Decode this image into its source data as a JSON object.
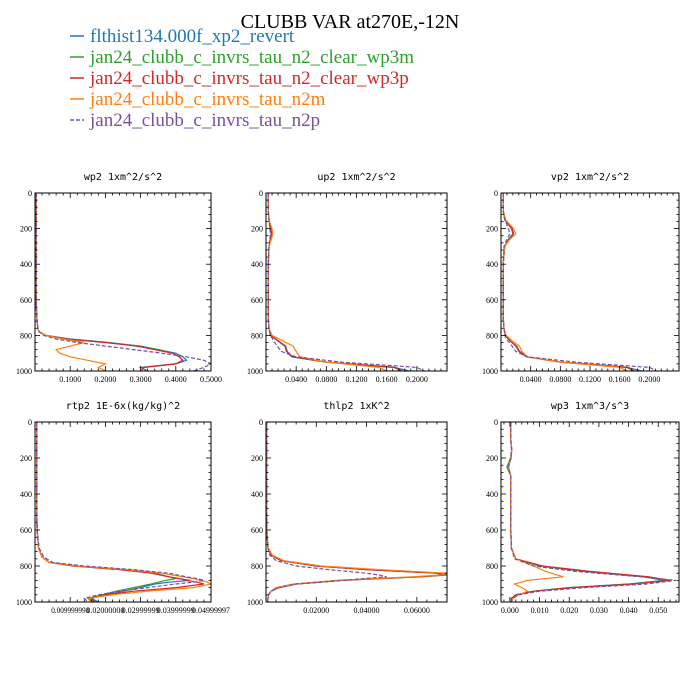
{
  "title": "CLUBB VAR at270E,-12N",
  "legend": [
    {
      "name": "flthist134.000f_xp2_revert",
      "color": "#1f77b4",
      "dash": false
    },
    {
      "name": "jan24_clubb_c_invrs_tau_n2_clear_wp3m",
      "color": "#2ca02c",
      "dash": false
    },
    {
      "name": "jan24_clubb_c_invrs_tau_n2_clear_wp3p",
      "color": "#d62728",
      "dash": false
    },
    {
      "name": "jan24_clubb_c_invrs_tau_n2m",
      "color": "#ff7f0e",
      "dash": false
    },
    {
      "name": "jan24_clubb_c_invrs_tau_n2p",
      "color": "#7b4fa0",
      "dash": true
    }
  ],
  "chart_data": [
    {
      "type": "line",
      "title": "wp2  1xm^2/s^2",
      "xlim": [
        0,
        0.5
      ],
      "ylim": [
        1000,
        0
      ],
      "xticks": [
        "0.1000",
        "0.2000",
        "0.3000",
        "0.4000",
        "0.5000"
      ],
      "xtick_values": [
        0.1,
        0.2,
        0.3,
        0.4,
        0.5
      ],
      "yticks": [
        "0",
        "200",
        "400",
        "600",
        "800",
        "1000"
      ],
      "y": [
        0,
        100,
        200,
        300,
        400,
        500,
        600,
        700,
        760,
        780,
        800,
        820,
        840,
        860,
        880,
        900,
        920,
        940,
        960,
        980,
        1000
      ],
      "series": [
        {
          "values": [
            0.004,
            0.004,
            0.003,
            0.003,
            0.003,
            0.003,
            0.003,
            0.005,
            0.008,
            0.012,
            0.03,
            0.1,
            0.21,
            0.3,
            0.35,
            0.4,
            0.42,
            0.43,
            0.4,
            0.3,
            0.32
          ]
        },
        {
          "values": [
            0.004,
            0.004,
            0.003,
            0.003,
            0.003,
            0.003,
            0.003,
            0.005,
            0.008,
            0.012,
            0.03,
            0.09,
            0.2,
            0.29,
            0.35,
            0.39,
            0.41,
            0.42,
            0.4,
            0.31,
            0.3
          ]
        },
        {
          "values": [
            0.004,
            0.004,
            0.003,
            0.003,
            0.003,
            0.003,
            0.003,
            0.005,
            0.008,
            0.012,
            0.03,
            0.09,
            0.2,
            0.29,
            0.34,
            0.39,
            0.41,
            0.42,
            0.4,
            0.31,
            0.3
          ]
        },
        {
          "values": [
            0.004,
            0.004,
            0.003,
            0.003,
            0.003,
            0.003,
            0.003,
            0.005,
            0.008,
            0.012,
            0.03,
            0.08,
            0.14,
            0.1,
            0.06,
            0.07,
            0.1,
            0.15,
            0.2,
            0.18,
            0.2
          ]
        },
        {
          "values": [
            0.004,
            0.004,
            0.003,
            0.003,
            0.003,
            0.003,
            0.003,
            0.005,
            0.008,
            0.012,
            0.025,
            0.06,
            0.12,
            0.2,
            0.28,
            0.36,
            0.43,
            0.48,
            0.5,
            0.48,
            0.45
          ]
        }
      ]
    },
    {
      "type": "line",
      "title": "up2  1xm^2/s^2",
      "xlim": [
        0,
        0.24
      ],
      "ylim": [
        1000,
        0
      ],
      "xticks": [
        "0.0400",
        "0.0800",
        "0.1200",
        "0.1600",
        "0.2000"
      ],
      "xtick_values": [
        0.04,
        0.08,
        0.12,
        0.16,
        0.2
      ],
      "yticks": [
        "0",
        "200",
        "400",
        "600",
        "800",
        "1000"
      ],
      "y": [
        0,
        100,
        150,
        200,
        230,
        260,
        300,
        400,
        500,
        600,
        700,
        760,
        800,
        830,
        860,
        890,
        920,
        950,
        980,
        1000
      ],
      "series": [
        {
          "values": [
            0.003,
            0.003,
            0.004,
            0.007,
            0.008,
            0.006,
            0.004,
            0.003,
            0.003,
            0.003,
            0.003,
            0.004,
            0.006,
            0.015,
            0.025,
            0.027,
            0.034,
            0.08,
            0.17,
            0.19
          ]
        },
        {
          "values": [
            0.003,
            0.003,
            0.004,
            0.006,
            0.007,
            0.006,
            0.004,
            0.003,
            0.003,
            0.003,
            0.003,
            0.004,
            0.006,
            0.016,
            0.026,
            0.028,
            0.035,
            0.08,
            0.17,
            0.18
          ]
        },
        {
          "values": [
            0.003,
            0.003,
            0.004,
            0.006,
            0.007,
            0.006,
            0.004,
            0.003,
            0.003,
            0.003,
            0.003,
            0.004,
            0.006,
            0.016,
            0.026,
            0.028,
            0.035,
            0.08,
            0.17,
            0.18
          ]
        },
        {
          "values": [
            0.003,
            0.003,
            0.004,
            0.008,
            0.009,
            0.007,
            0.004,
            0.003,
            0.003,
            0.003,
            0.003,
            0.004,
            0.008,
            0.022,
            0.036,
            0.04,
            0.045,
            0.08,
            0.15,
            0.16
          ]
        },
        {
          "values": [
            0.003,
            0.003,
            0.004,
            0.005,
            0.006,
            0.005,
            0.004,
            0.003,
            0.003,
            0.003,
            0.003,
            0.004,
            0.006,
            0.01,
            0.015,
            0.02,
            0.04,
            0.1,
            0.2,
            0.21
          ]
        }
      ]
    },
    {
      "type": "line",
      "title": "vp2  1xm^2/s^2",
      "xlim": [
        0,
        0.24
      ],
      "ylim": [
        1000,
        0
      ],
      "xticks": [
        "0.0400",
        "0.0800",
        "0.1200",
        "0.1600",
        "0.2000"
      ],
      "xtick_values": [
        0.04,
        0.08,
        0.12,
        0.16,
        0.2
      ],
      "yticks": [
        "0",
        "200",
        "400",
        "600",
        "800",
        "1000"
      ],
      "y": [
        0,
        100,
        150,
        200,
        230,
        260,
        300,
        400,
        500,
        600,
        700,
        760,
        800,
        830,
        860,
        890,
        920,
        950,
        980,
        1000
      ],
      "series": [
        {
          "values": [
            0.003,
            0.003,
            0.005,
            0.014,
            0.016,
            0.01,
            0.005,
            0.003,
            0.003,
            0.003,
            0.003,
            0.004,
            0.006,
            0.012,
            0.02,
            0.024,
            0.034,
            0.08,
            0.17,
            0.19
          ]
        },
        {
          "values": [
            0.003,
            0.003,
            0.006,
            0.015,
            0.017,
            0.011,
            0.005,
            0.003,
            0.003,
            0.003,
            0.003,
            0.004,
            0.006,
            0.012,
            0.021,
            0.025,
            0.035,
            0.08,
            0.17,
            0.18
          ]
        },
        {
          "values": [
            0.003,
            0.003,
            0.006,
            0.015,
            0.017,
            0.011,
            0.005,
            0.003,
            0.003,
            0.003,
            0.003,
            0.004,
            0.006,
            0.012,
            0.021,
            0.025,
            0.035,
            0.08,
            0.17,
            0.18
          ]
        },
        {
          "values": [
            0.003,
            0.003,
            0.006,
            0.017,
            0.02,
            0.012,
            0.005,
            0.003,
            0.003,
            0.003,
            0.003,
            0.004,
            0.007,
            0.015,
            0.025,
            0.028,
            0.036,
            0.08,
            0.16,
            0.17
          ]
        },
        {
          "values": [
            0.003,
            0.003,
            0.005,
            0.01,
            0.012,
            0.008,
            0.004,
            0.003,
            0.003,
            0.003,
            0.003,
            0.004,
            0.005,
            0.009,
            0.015,
            0.02,
            0.035,
            0.1,
            0.2,
            0.21
          ]
        }
      ]
    },
    {
      "type": "line",
      "title": "rtp2  1E-6x(kg/kg)^2",
      "xlim": [
        0,
        0.05
      ],
      "ylim": [
        1000,
        0
      ],
      "xticks": [
        "0.009999998",
        "0.02000000",
        "0.02999999",
        "0.03999999",
        "0.04999997"
      ],
      "xtick_values": [
        0.01,
        0.02,
        0.03,
        0.04,
        0.05
      ],
      "yticks": [
        "0",
        "200",
        "400",
        "600",
        "800",
        "1000"
      ],
      "y": [
        0,
        100,
        200,
        300,
        400,
        500,
        600,
        700,
        750,
        780,
        800,
        820,
        840,
        860,
        870,
        880,
        890,
        900,
        920,
        940,
        960,
        980,
        1000
      ],
      "series": [
        {
          "values": [
            0.0005,
            0.0005,
            0.0005,
            0.0005,
            0.0005,
            0.0005,
            0.0006,
            0.001,
            0.002,
            0.004,
            0.012,
            0.025,
            0.034,
            0.038,
            0.041,
            0.044,
            0.038,
            0.034,
            0.03,
            0.025,
            0.02,
            0.016,
            0.018
          ]
        },
        {
          "values": [
            0.0005,
            0.0005,
            0.0005,
            0.0005,
            0.0005,
            0.0005,
            0.0006,
            0.001,
            0.002,
            0.004,
            0.011,
            0.024,
            0.034,
            0.038,
            0.04,
            0.037,
            0.035,
            0.033,
            0.028,
            0.023,
            0.019,
            0.015,
            0.017
          ]
        },
        {
          "values": [
            0.0005,
            0.0005,
            0.0005,
            0.0005,
            0.0005,
            0.0005,
            0.0006,
            0.001,
            0.002,
            0.004,
            0.011,
            0.024,
            0.033,
            0.038,
            0.041,
            0.043,
            0.046,
            0.048,
            0.04,
            0.028,
            0.02,
            0.016,
            0.017
          ]
        },
        {
          "values": [
            0.0005,
            0.0005,
            0.0005,
            0.0005,
            0.0005,
            0.0005,
            0.0006,
            0.001,
            0.002,
            0.004,
            0.012,
            0.026,
            0.036,
            0.042,
            0.045,
            0.047,
            0.049,
            0.05,
            0.045,
            0.032,
            0.022,
            0.015,
            0.016
          ]
        },
        {
          "values": [
            0.0005,
            0.0005,
            0.0005,
            0.0005,
            0.0005,
            0.0005,
            0.0006,
            0.0012,
            0.0025,
            0.005,
            0.014,
            0.028,
            0.038,
            0.043,
            0.046,
            0.048,
            0.045,
            0.04,
            0.032,
            0.024,
            0.018,
            0.014,
            0.015
          ]
        }
      ]
    },
    {
      "type": "line",
      "title": "thlp2  1xK^2",
      "xlim": [
        0,
        0.072
      ],
      "ylim": [
        1000,
        0
      ],
      "xticks": [
        "0.02000",
        "0.04000",
        "0.06000"
      ],
      "xtick_values": [
        0.02,
        0.04,
        0.06
      ],
      "yticks": [
        "0",
        "200",
        "400",
        "600",
        "800",
        "1000"
      ],
      "y": [
        0,
        100,
        200,
        300,
        400,
        500,
        600,
        700,
        740,
        770,
        800,
        820,
        840,
        850,
        860,
        880,
        900,
        920,
        940,
        960,
        980,
        1000
      ],
      "series": [
        {
          "values": [
            0.0002,
            0.0002,
            0.0002,
            0.0002,
            0.0002,
            0.0002,
            0.0003,
            0.0008,
            0.002,
            0.006,
            0.02,
            0.04,
            0.068,
            0.07,
            0.06,
            0.03,
            0.012,
            0.005,
            0.002,
            0.001,
            0.0008,
            0.0006
          ]
        },
        {
          "values": [
            0.0002,
            0.0002,
            0.0002,
            0.0002,
            0.0002,
            0.0002,
            0.0003,
            0.0008,
            0.002,
            0.006,
            0.02,
            0.042,
            0.07,
            0.072,
            0.062,
            0.03,
            0.012,
            0.005,
            0.002,
            0.001,
            0.0008,
            0.0006
          ]
        },
        {
          "values": [
            0.0002,
            0.0002,
            0.0002,
            0.0002,
            0.0002,
            0.0002,
            0.0003,
            0.0008,
            0.002,
            0.006,
            0.02,
            0.04,
            0.068,
            0.071,
            0.061,
            0.03,
            0.012,
            0.005,
            0.002,
            0.001,
            0.0008,
            0.0006
          ]
        },
        {
          "values": [
            0.0002,
            0.0002,
            0.0002,
            0.0002,
            0.0002,
            0.0002,
            0.0003,
            0.0009,
            0.0025,
            0.007,
            0.022,
            0.045,
            0.072,
            0.07,
            0.058,
            0.028,
            0.011,
            0.004,
            0.002,
            0.001,
            0.0008,
            0.0006
          ]
        },
        {
          "values": [
            0.0002,
            0.0002,
            0.0002,
            0.0002,
            0.0002,
            0.0002,
            0.0003,
            0.0007,
            0.0015,
            0.004,
            0.012,
            0.025,
            0.04,
            0.045,
            0.048,
            0.03,
            0.012,
            0.005,
            0.002,
            0.001,
            0.0008,
            0.0006
          ]
        }
      ]
    },
    {
      "type": "line",
      "title": "wp3  1xm^3/s^3",
      "xlim": [
        -0.003,
        0.057
      ],
      "ylim": [
        1000,
        0
      ],
      "xticks": [
        "0.000",
        "0.010",
        "0.020",
        "0.030",
        "0.040",
        "0.050"
      ],
      "xtick_values": [
        0,
        0.01,
        0.02,
        0.03,
        0.04,
        0.05
      ],
      "yticks": [
        "0",
        "200",
        "400",
        "600",
        "800",
        "1000"
      ],
      "y": [
        0,
        100,
        150,
        200,
        250,
        300,
        400,
        500,
        600,
        700,
        760,
        800,
        830,
        860,
        880,
        900,
        920,
        940,
        960,
        980,
        1000
      ],
      "series": [
        {
          "values": [
            0.0003,
            0.0003,
            0.0006,
            0.0004,
            -0.0005,
            0.0003,
            0.0003,
            0.0003,
            0.0003,
            0.0005,
            0.002,
            0.01,
            0.025,
            0.045,
            0.052,
            0.04,
            0.02,
            0.008,
            0.002,
            0.0005,
            0.0005
          ]
        },
        {
          "values": [
            0.0003,
            0.0003,
            0.0006,
            0.0002,
            -0.001,
            0.0003,
            0.0003,
            0.0003,
            0.0003,
            0.0005,
            0.002,
            0.01,
            0.026,
            0.046,
            0.053,
            0.041,
            0.02,
            0.008,
            0.002,
            0.0005,
            0.0005
          ]
        },
        {
          "values": [
            0.0003,
            0.0003,
            0.0006,
            0.0004,
            -0.0005,
            0.0003,
            0.0003,
            0.0003,
            0.0003,
            0.0005,
            0.002,
            0.011,
            0.027,
            0.047,
            0.054,
            0.042,
            0.021,
            0.008,
            0.002,
            0.0005,
            0.0005
          ]
        },
        {
          "values": [
            0.0003,
            0.0003,
            0.0006,
            0.0004,
            -0.0005,
            0.0003,
            0.0003,
            0.0003,
            0.0003,
            0.0005,
            0.002,
            0.008,
            0.012,
            0.018,
            0.006,
            0.0015,
            0.004,
            0.006,
            0.003,
            0.001,
            0.0005
          ]
        },
        {
          "values": [
            0.0003,
            0.0003,
            0.0005,
            0.0003,
            -0.0005,
            0.0003,
            0.0003,
            0.0003,
            0.0003,
            0.0005,
            0.0015,
            0.008,
            0.022,
            0.044,
            0.056,
            0.046,
            0.025,
            0.01,
            0.003,
            0.0008,
            0.0005
          ]
        }
      ]
    }
  ]
}
